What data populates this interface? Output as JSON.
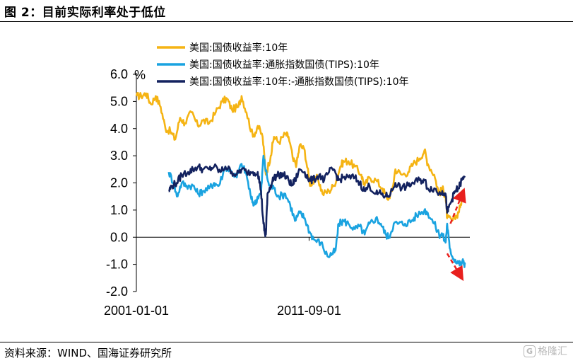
{
  "figure": {
    "title": "图 2：目前实际利率处于低位",
    "source": "资料来源：WIND、国海证券研究所",
    "watermark_icon": "G",
    "watermark": "格隆汇"
  },
  "chart_data": {
    "type": "line",
    "unit": "%",
    "ylim": [
      -2.0,
      6.0
    ],
    "yticks": [
      "6.0",
      "5.0",
      "4.0",
      "3.0",
      "2.0",
      "1.0",
      "0.0",
      "-1.0",
      "-2.0"
    ],
    "ytick_values": [
      6,
      5,
      4,
      3,
      2,
      1,
      0,
      -1,
      -2
    ],
    "xlim": [
      2001.0,
      2021.6
    ],
    "xtick_labels": [
      "2001-01-01",
      "2011-09-01"
    ],
    "xtick_values": [
      2001.0,
      2011.67
    ],
    "series": [
      {
        "name": "美国:国债收益率:10年",
        "color": "#F5B414",
        "points": [
          [
            2001.0,
            5.2
          ],
          [
            2001.3,
            5.2
          ],
          [
            2001.6,
            5.3
          ],
          [
            2001.9,
            4.9
          ],
          [
            2002.2,
            5.2
          ],
          [
            2002.5,
            4.8
          ],
          [
            2002.8,
            4.0
          ],
          [
            2003.1,
            3.9
          ],
          [
            2003.4,
            3.6
          ],
          [
            2003.7,
            4.4
          ],
          [
            2004.0,
            4.2
          ],
          [
            2004.4,
            4.6
          ],
          [
            2004.8,
            4.1
          ],
          [
            2005.1,
            4.3
          ],
          [
            2005.5,
            4.2
          ],
          [
            2005.9,
            4.6
          ],
          [
            2006.3,
            5.0
          ],
          [
            2006.6,
            5.1
          ],
          [
            2006.9,
            4.7
          ],
          [
            2007.3,
            4.8
          ],
          [
            2007.5,
            5.2
          ],
          [
            2007.8,
            4.6
          ],
          [
            2008.2,
            3.7
          ],
          [
            2008.5,
            4.1
          ],
          [
            2008.8,
            3.7
          ],
          [
            2009.0,
            2.3
          ],
          [
            2009.3,
            3.0
          ],
          [
            2009.5,
            3.7
          ],
          [
            2009.8,
            3.5
          ],
          [
            2010.2,
            3.8
          ],
          [
            2010.4,
            3.7
          ],
          [
            2010.7,
            2.8
          ],
          [
            2010.9,
            2.7
          ],
          [
            2011.1,
            3.4
          ],
          [
            2011.4,
            3.2
          ],
          [
            2011.7,
            2.0
          ],
          [
            2011.9,
            2.0
          ],
          [
            2012.2,
            2.2
          ],
          [
            2012.5,
            1.6
          ],
          [
            2012.9,
            1.7
          ],
          [
            2013.2,
            1.9
          ],
          [
            2013.6,
            2.6
          ],
          [
            2013.8,
            2.8
          ],
          [
            2014.1,
            2.8
          ],
          [
            2014.5,
            2.6
          ],
          [
            2014.9,
            2.3
          ],
          [
            2015.1,
            1.9
          ],
          [
            2015.4,
            2.2
          ],
          [
            2015.8,
            2.1
          ],
          [
            2016.2,
            1.8
          ],
          [
            2016.5,
            1.4
          ],
          [
            2016.8,
            1.7
          ],
          [
            2017.0,
            2.5
          ],
          [
            2017.4,
            2.3
          ],
          [
            2017.8,
            2.4
          ],
          [
            2018.1,
            2.7
          ],
          [
            2018.5,
            2.9
          ],
          [
            2018.8,
            3.2
          ],
          [
            2019.0,
            2.7
          ],
          [
            2019.4,
            2.3
          ],
          [
            2019.7,
            1.6
          ],
          [
            2019.9,
            1.8
          ],
          [
            2020.1,
            1.5
          ],
          [
            2020.2,
            0.7
          ],
          [
            2020.5,
            0.6
          ],
          [
            2020.8,
            0.8
          ],
          [
            2021.0,
            1.1
          ],
          [
            2021.2,
            1.7
          ]
        ]
      },
      {
        "name": "美国:国债收益率:通胀指数国债(TIPS):10年",
        "color": "#1AA3E0",
        "points": [
          [
            2003.0,
            2.4
          ],
          [
            2003.3,
            2.0
          ],
          [
            2003.5,
            1.5
          ],
          [
            2003.8,
            2.0
          ],
          [
            2004.1,
            1.9
          ],
          [
            2004.5,
            1.9
          ],
          [
            2004.8,
            1.6
          ],
          [
            2005.1,
            1.7
          ],
          [
            2005.5,
            1.8
          ],
          [
            2005.8,
            2.0
          ],
          [
            2006.1,
            1.9
          ],
          [
            2006.5,
            2.6
          ],
          [
            2006.9,
            2.4
          ],
          [
            2007.2,
            2.2
          ],
          [
            2007.5,
            2.7
          ],
          [
            2007.8,
            2.3
          ],
          [
            2008.1,
            1.4
          ],
          [
            2008.3,
            1.2
          ],
          [
            2008.5,
            1.5
          ],
          [
            2008.7,
            1.6
          ],
          [
            2008.85,
            3.0
          ],
          [
            2008.95,
            2.6
          ],
          [
            2009.2,
            1.9
          ],
          [
            2009.5,
            1.8
          ],
          [
            2009.8,
            1.5
          ],
          [
            2010.2,
            1.6
          ],
          [
            2010.5,
            1.2
          ],
          [
            2010.8,
            0.6
          ],
          [
            2011.1,
            0.9
          ],
          [
            2011.4,
            0.7
          ],
          [
            2011.7,
            0.2
          ],
          [
            2012.0,
            -0.1
          ],
          [
            2012.4,
            -0.2
          ],
          [
            2012.8,
            -0.7
          ],
          [
            2013.1,
            -0.6
          ],
          [
            2013.3,
            -0.5
          ],
          [
            2013.5,
            0.5
          ],
          [
            2013.8,
            0.6
          ],
          [
            2014.1,
            0.5
          ],
          [
            2014.5,
            0.3
          ],
          [
            2014.8,
            0.4
          ],
          [
            2015.1,
            0.1
          ],
          [
            2015.4,
            0.5
          ],
          [
            2015.8,
            0.7
          ],
          [
            2016.1,
            0.5
          ],
          [
            2016.4,
            0.1
          ],
          [
            2016.6,
            0.0
          ],
          [
            2016.9,
            0.5
          ],
          [
            2017.2,
            0.5
          ],
          [
            2017.6,
            0.5
          ],
          [
            2018.0,
            0.6
          ],
          [
            2018.3,
            0.8
          ],
          [
            2018.8,
            1.0
          ],
          [
            2019.0,
            0.9
          ],
          [
            2019.4,
            0.5
          ],
          [
            2019.7,
            0.1
          ],
          [
            2019.9,
            0.1
          ],
          [
            2020.1,
            -0.2
          ],
          [
            2020.2,
            0.5
          ],
          [
            2020.35,
            -0.4
          ],
          [
            2020.6,
            -0.8
          ],
          [
            2020.9,
            -0.9
          ],
          [
            2021.0,
            -1.0
          ],
          [
            2021.2,
            -0.9
          ],
          [
            2021.3,
            -1.0
          ]
        ]
      },
      {
        "name": "美国:国债收益率:10年:-通胀指数国债(TIPS):10年",
        "color": "#13225F",
        "points": [
          [
            2003.0,
            1.7
          ],
          [
            2003.2,
            1.9
          ],
          [
            2003.5,
            2.0
          ],
          [
            2003.8,
            2.3
          ],
          [
            2004.2,
            2.4
          ],
          [
            2004.5,
            2.5
          ],
          [
            2004.8,
            2.6
          ],
          [
            2005.1,
            2.5
          ],
          [
            2005.5,
            2.5
          ],
          [
            2005.8,
            2.6
          ],
          [
            2006.2,
            2.4
          ],
          [
            2006.5,
            2.6
          ],
          [
            2006.9,
            2.4
          ],
          [
            2007.2,
            2.3
          ],
          [
            2007.5,
            2.5
          ],
          [
            2007.8,
            2.4
          ],
          [
            2008.2,
            2.4
          ],
          [
            2008.5,
            2.4
          ],
          [
            2008.7,
            1.7
          ],
          [
            2008.85,
            0.5
          ],
          [
            2008.95,
            0.1
          ],
          [
            2009.0,
            0.1
          ],
          [
            2009.1,
            1.6
          ],
          [
            2009.3,
            1.9
          ],
          [
            2009.5,
            2.2
          ],
          [
            2009.8,
            2.3
          ],
          [
            2010.1,
            2.3
          ],
          [
            2010.4,
            2.1
          ],
          [
            2010.6,
            1.9
          ],
          [
            2010.8,
            2.1
          ],
          [
            2011.1,
            2.5
          ],
          [
            2011.4,
            2.4
          ],
          [
            2011.7,
            2.1
          ],
          [
            2011.9,
            2.1
          ],
          [
            2012.3,
            2.3
          ],
          [
            2012.6,
            2.1
          ],
          [
            2012.9,
            2.4
          ],
          [
            2013.2,
            2.5
          ],
          [
            2013.5,
            2.1
          ],
          [
            2013.8,
            2.2
          ],
          [
            2014.1,
            2.2
          ],
          [
            2014.5,
            2.2
          ],
          [
            2014.8,
            2.0
          ],
          [
            2015.1,
            1.7
          ],
          [
            2015.4,
            1.9
          ],
          [
            2015.8,
            1.6
          ],
          [
            2016.1,
            1.6
          ],
          [
            2016.4,
            1.5
          ],
          [
            2016.7,
            1.6
          ],
          [
            2017.0,
            2.0
          ],
          [
            2017.4,
            1.8
          ],
          [
            2017.8,
            1.9
          ],
          [
            2018.1,
            2.0
          ],
          [
            2018.5,
            2.1
          ],
          [
            2018.8,
            2.1
          ],
          [
            2019.0,
            1.8
          ],
          [
            2019.4,
            1.8
          ],
          [
            2019.7,
            1.6
          ],
          [
            2019.9,
            1.7
          ],
          [
            2020.1,
            1.6
          ],
          [
            2020.2,
            0.9
          ],
          [
            2020.3,
            1.1
          ],
          [
            2020.5,
            1.4
          ],
          [
            2020.7,
            1.7
          ],
          [
            2020.9,
            1.8
          ],
          [
            2021.1,
            2.1
          ],
          [
            2021.3,
            2.2
          ]
        ]
      }
    ],
    "annotations": [
      {
        "type": "arrow",
        "color": "#E8201E",
        "style": "dashed",
        "from": [
          2020.4,
          0.5
        ],
        "to": [
          2021.2,
          1.7
        ]
      },
      {
        "type": "arrow",
        "color": "#E8201E",
        "style": "dashed",
        "from": [
          2020.2,
          -0.6
        ],
        "to": [
          2021.1,
          -1.5
        ]
      }
    ]
  }
}
